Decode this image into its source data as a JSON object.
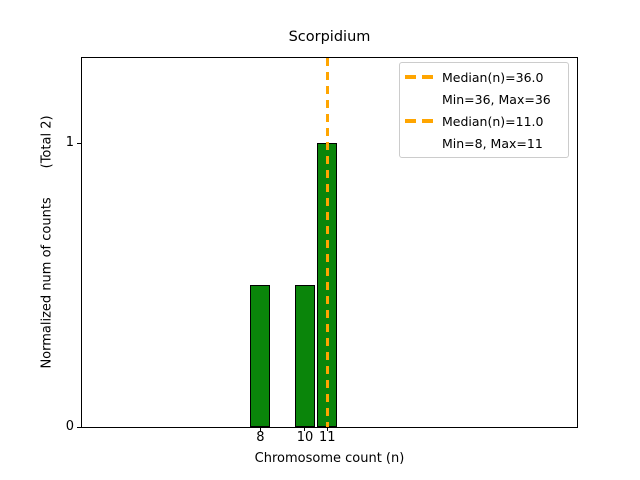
{
  "figure_title": "Scorpidium",
  "chart_data": {
    "type": "bar",
    "title": "Scorpidium",
    "xlabel": "Chromosome count (n)",
    "ylabel": "Normalized num of counts       (Total 2)",
    "x": [
      8,
      10,
      11
    ],
    "values": [
      0.5,
      0.5,
      1.0
    ],
    "xticks": [
      "8",
      "10",
      "11"
    ],
    "xtick_values": [
      8,
      10,
      11
    ],
    "yticks": [
      "0",
      "1"
    ],
    "ytick_values": [
      0,
      1
    ],
    "xlim": [
      0,
      22.2
    ],
    "ylim": [
      0,
      1.3
    ],
    "bar_width": 0.9,
    "bar_color": "#0a850a",
    "bar_edge_color": "#000000",
    "grid": false,
    "legend_position": "upper right",
    "annotations": [
      {
        "type": "vline",
        "x": 36,
        "color": "#FFA500",
        "style": "dashed",
        "label": "Median(n)=36.0",
        "sublabel": "Min=36, Max=36"
      },
      {
        "type": "vline",
        "x": 11,
        "color": "#FFA500",
        "style": "dashed",
        "label": "Median(n)=11.0",
        "sublabel": "Min=8, Max=11"
      }
    ]
  },
  "colors": {
    "median_line": "#FFA500",
    "bar_fill": "#0a850a",
    "bar_edge": "#000000",
    "legend_border": "#cccccc",
    "text": "#000000",
    "background": "#ffffff"
  }
}
